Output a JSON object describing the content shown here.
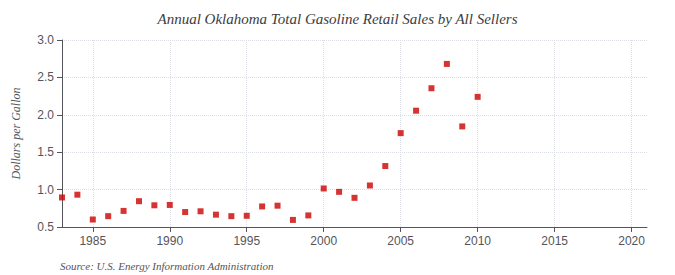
{
  "chart_data": {
    "type": "scatter",
    "title": "Annual Oklahoma Total Gasoline Retail Sales by All Sellers",
    "ylabel": "Dollars per Gallon",
    "annotations": [
      "Source: U.S. Energy Information Administration"
    ],
    "x": [
      1983,
      1984,
      1985,
      1986,
      1987,
      1988,
      1989,
      1990,
      1991,
      1992,
      1993,
      1994,
      1995,
      1996,
      1997,
      1998,
      1999,
      2000,
      2001,
      2002,
      2003,
      2004,
      2005,
      2006,
      2007,
      2008,
      2009,
      2010
    ],
    "values": [
      0.895,
      0.932,
      0.6,
      0.645,
      0.715,
      0.845,
      0.79,
      0.795,
      0.7,
      0.71,
      0.665,
      0.645,
      0.65,
      0.775,
      0.785,
      0.595,
      0.655,
      1.015,
      0.97,
      0.89,
      1.055,
      1.315,
      1.755,
      2.055,
      2.355,
      2.68,
      1.845,
      2.24
    ],
    "color": "#cc0000",
    "marker": "square",
    "xlim": [
      1983,
      2021
    ],
    "ylim": [
      0.5,
      3.0
    ],
    "xticks": [
      1985,
      1990,
      1995,
      2000,
      2005,
      2010,
      2015,
      2020
    ],
    "yticks": [
      0.5,
      {
        "value": 1.0,
        "label": "1.0"
      },
      1.5,
      {
        "value": 2.0,
        "label": "2.0"
      },
      2.5,
      {
        "value": 3.0,
        "label": "3.0"
      }
    ],
    "grid": true
  }
}
